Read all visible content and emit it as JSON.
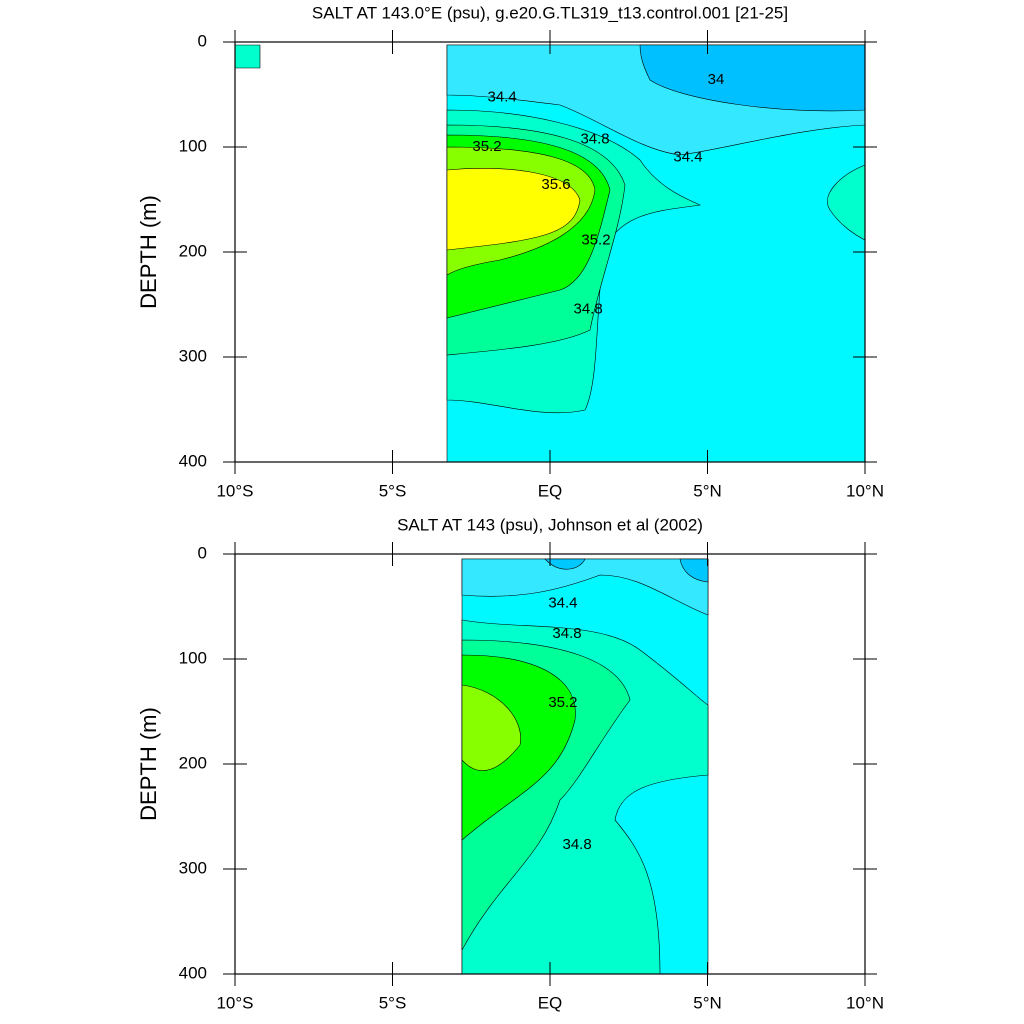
{
  "chart_data": [
    {
      "type": "contour",
      "title": "SALT AT 143.0°E (psu), g.e20.G.TL319_t13.control.001 [21-25]",
      "ylabel": "DEPTH (m)",
      "xlim": [
        -10,
        10
      ],
      "ylim": [
        0,
        400
      ],
      "y_reversed": true,
      "xticks": [
        {
          "value": -10,
          "label": "10°S"
        },
        {
          "value": -5,
          "label": "5°S"
        },
        {
          "value": 0,
          "label": "EQ"
        },
        {
          "value": 5,
          "label": "5°N"
        },
        {
          "value": 10,
          "label": "10°N"
        }
      ],
      "yticks": [
        0,
        100,
        200,
        300,
        400
      ],
      "colors": [
        "#00c0ff",
        "#33e8ff",
        "#00f8ff",
        "#00ffcc",
        "#00ff99",
        "#00ff00",
        "#88ff00",
        "#ffff00"
      ],
      "contour_labels": [
        {
          "value": 34,
          "x": 5.27,
          "y": 36
        },
        {
          "value": 34.4,
          "x": -1.52,
          "y": 53
        },
        {
          "value": 34.8,
          "x": 1.43,
          "y": 93
        },
        {
          "value": 35.2,
          "x": -2.0,
          "y": 100
        },
        {
          "value": 34.4,
          "x": 4.38,
          "y": 110
        },
        {
          "value": 35.6,
          "x": 0.19,
          "y": 136
        },
        {
          "value": 35.2,
          "x": 1.46,
          "y": 189
        },
        {
          "value": 34.8,
          "x": 1.21,
          "y": 255
        }
      ]
    },
    {
      "type": "contour",
      "title": "SALT AT 143 (psu), Johnson et al (2002)",
      "ylabel": "DEPTH (m)",
      "xlim": [
        -10,
        10
      ],
      "ylim": [
        0,
        400
      ],
      "y_reversed": true,
      "xticks": [
        {
          "value": -10,
          "label": "10°S"
        },
        {
          "value": -5,
          "label": "5°S"
        },
        {
          "value": 0,
          "label": "EQ"
        },
        {
          "value": 5,
          "label": "5°N"
        },
        {
          "value": 10,
          "label": "10°N"
        }
      ],
      "yticks": [
        0,
        100,
        200,
        300,
        400
      ],
      "colors": [
        "#00c8ff",
        "#33e8ff",
        "#00f8ff",
        "#00ffcc",
        "#00ff99",
        "#00ff00",
        "#88ff00"
      ],
      "contour_labels": [
        {
          "value": 34.4,
          "x": 0.41,
          "y": 47
        },
        {
          "value": 34.8,
          "x": 0.54,
          "y": 76
        },
        {
          "value": 35.2,
          "x": 0.41,
          "y": 142
        },
        {
          "value": 34.8,
          "x": 0.86,
          "y": 277
        }
      ]
    }
  ]
}
